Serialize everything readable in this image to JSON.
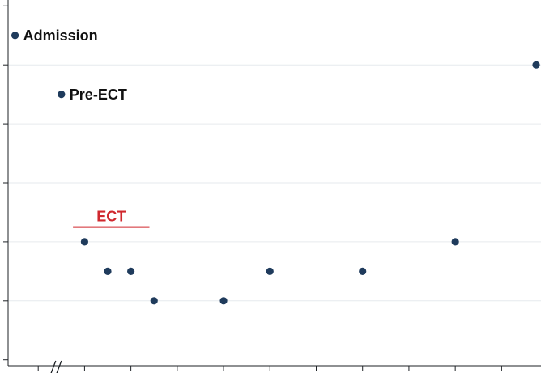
{
  "chart_data": {
    "type": "scatter",
    "grid": true,
    "colors": {
      "point": "#1f3b5c",
      "ect": "#d0282e",
      "grid": "#e6eaee",
      "axis": "#1e2226"
    },
    "ylim": [
      -0.1,
      6.1
    ],
    "xlim": [
      -0.15,
      11.35
    ],
    "y_gridlines": [
      1,
      2,
      3,
      4,
      5
    ],
    "y_ticks": [
      0,
      1,
      2,
      3,
      4,
      5,
      6
    ],
    "x_ticks": [
      0.5,
      1.5,
      2.5,
      3.5,
      4.5,
      5.5,
      6.5,
      7.5,
      8.5,
      9.5,
      10.5
    ],
    "axis_break": true,
    "points": [
      {
        "x": 0,
        "y": 5.5,
        "label": "Admission"
      },
      {
        "x": 1,
        "y": 4.5,
        "label": "Pre-ECT"
      },
      {
        "x": 1.5,
        "y": 2
      },
      {
        "x": 2,
        "y": 1.5
      },
      {
        "x": 2.5,
        "y": 1.5
      },
      {
        "x": 3,
        "y": 1
      },
      {
        "x": 4.5,
        "y": 1
      },
      {
        "x": 5.5,
        "y": 1.5
      },
      {
        "x": 7.5,
        "y": 1.5
      },
      {
        "x": 9.5,
        "y": 2
      },
      {
        "x": 11.5,
        "y": 5
      }
    ],
    "annotations": [
      {
        "text": "ECT",
        "x_start": 1.25,
        "x_end": 2.9,
        "y": 2.25
      }
    ]
  }
}
